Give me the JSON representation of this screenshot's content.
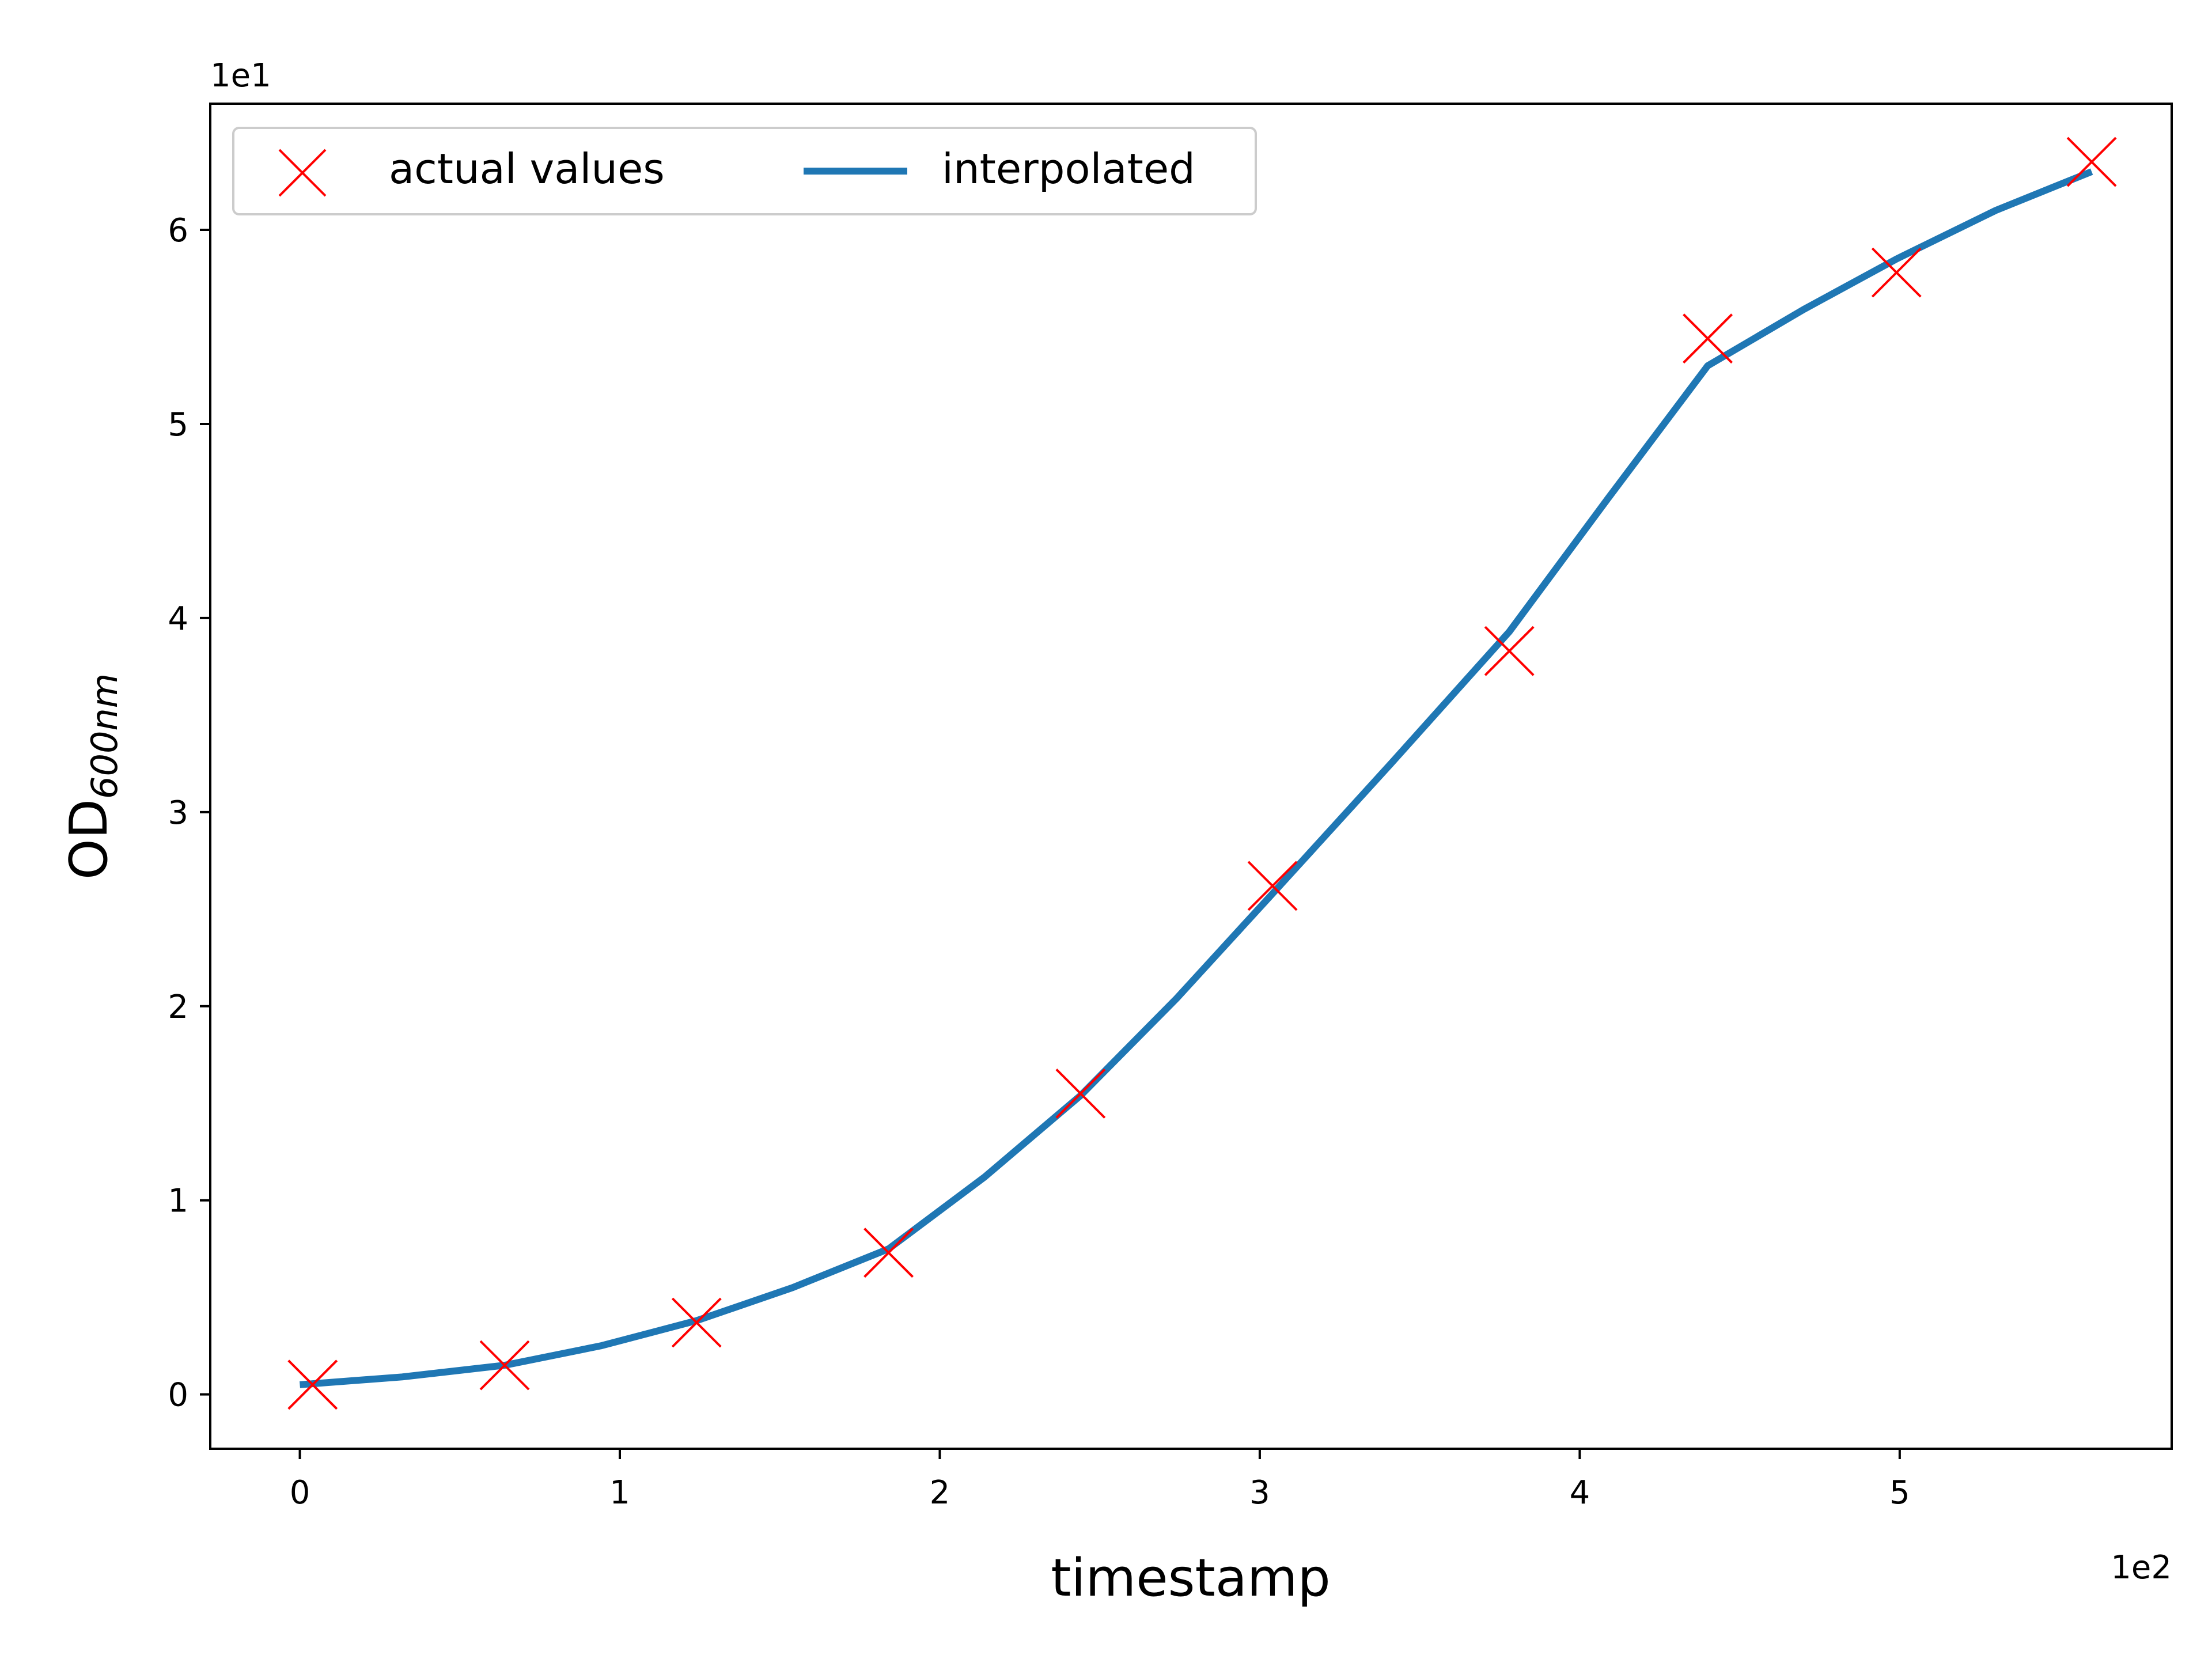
{
  "chart_data": {
    "type": "line",
    "xlabel": "timestamp",
    "ylabel_main": "OD",
    "ylabel_sub": "600nm",
    "x_offset_label": "1e2",
    "y_offset_label": "1e1",
    "xlim": [
      -0.28,
      5.85
    ],
    "ylim": [
      -0.28,
      6.65
    ],
    "xticks": [
      0,
      1,
      2,
      3,
      4,
      5
    ],
    "yticks": [
      0,
      1,
      2,
      3,
      4,
      5,
      6
    ],
    "xtick_labels": [
      "0",
      "1",
      "2",
      "3",
      "4",
      "5"
    ],
    "ytick_labels": [
      "0",
      "1",
      "2",
      "3",
      "4",
      "5",
      "6"
    ],
    "grid": false,
    "legend_position": "top-left",
    "series": [
      {
        "name": "actual values",
        "kind": "markers",
        "marker": "x",
        "color": "#ff0000",
        "x": [
          0.04,
          0.64,
          1.24,
          1.84,
          2.44,
          3.04,
          3.78,
          4.4,
          4.99,
          5.6
        ],
        "y": [
          0.05,
          0.15,
          0.37,
          0.73,
          1.55,
          2.62,
          3.83,
          5.44,
          5.78,
          6.35
        ]
      },
      {
        "name": "interpolated",
        "kind": "line",
        "color": "#1f77b4",
        "x": [
          0.0,
          0.32,
          0.64,
          0.94,
          1.24,
          1.54,
          1.84,
          2.14,
          2.44,
          2.74,
          3.04,
          3.41,
          3.78,
          4.09,
          4.4,
          4.7,
          4.99,
          5.3,
          5.6
        ],
        "y": [
          0.05,
          0.09,
          0.15,
          0.25,
          0.38,
          0.55,
          0.75,
          1.12,
          1.54,
          2.04,
          2.58,
          3.25,
          3.93,
          4.62,
          5.3,
          5.59,
          5.85,
          6.1,
          6.3
        ]
      }
    ]
  }
}
